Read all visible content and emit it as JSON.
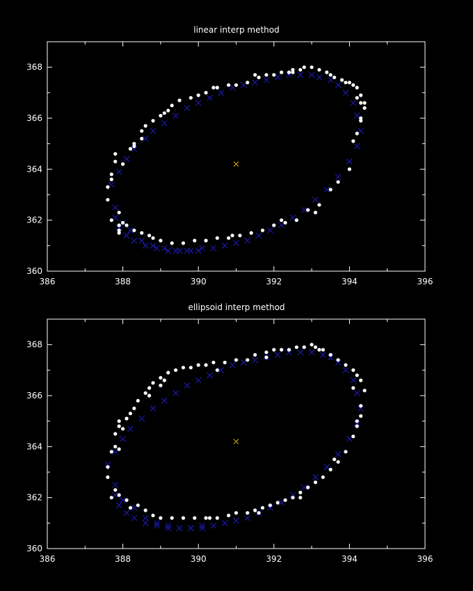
{
  "chart_data": [
    {
      "type": "scatter",
      "title": "linear interp method",
      "xlabel": "",
      "ylabel": "",
      "xlim": [
        386,
        396
      ],
      "ylim": [
        360,
        369
      ],
      "xticks": [
        386,
        388,
        390,
        392,
        394,
        396
      ],
      "yticks": [
        360,
        362,
        364,
        366,
        368
      ],
      "grid": false,
      "colors": {
        "background": "#000000",
        "axes": "#ffffff",
        "dots": "#ffffff",
        "crosses": "#1a1aa8",
        "center": "#d8b000"
      },
      "center": {
        "x": 391.0,
        "y": 364.2
      },
      "dots_x": [
        387.6,
        387.6,
        387.7,
        387.7,
        387.8,
        387.8,
        387.9,
        387.9,
        388.0,
        388.2,
        388.3,
        388.3,
        388.5,
        388.5,
        388.6,
        388.8,
        389.0,
        389.2,
        389.5,
        389.8,
        390.0,
        390.2,
        390.5,
        390.8,
        391.0,
        391.3,
        391.5,
        391.8,
        392.0,
        392.2,
        392.4,
        392.5,
        392.7,
        392.8,
        393.0,
        393.2,
        393.4,
        393.5,
        393.8,
        393.9,
        394.0,
        394.1,
        394.2,
        394.2,
        394.3,
        394.3,
        394.4,
        394.4,
        394.3,
        394.2,
        394.0,
        393.7,
        393.5,
        393.2,
        392.9,
        392.6,
        392.3,
        392.0,
        391.7,
        391.4,
        391.1,
        390.8,
        390.5,
        390.2,
        389.9,
        389.6,
        389.3,
        389.0,
        388.8,
        388.7,
        388.5,
        388.3,
        388.1,
        387.9,
        387.7,
        389.1,
        389.3,
        390.4,
        391.6,
        392.5,
        393.6,
        387.9,
        388.0,
        394.3,
        392.2,
        390.9,
        393.1,
        394.1
      ],
      "dots_y": [
        362.8,
        363.3,
        363.6,
        363.8,
        364.3,
        364.6,
        361.8,
        361.6,
        364.2,
        364.8,
        364.9,
        365.0,
        365.2,
        365.5,
        365.7,
        365.9,
        366.1,
        366.3,
        366.7,
        366.8,
        366.9,
        367.0,
        367.2,
        367.3,
        367.3,
        367.4,
        367.7,
        367.7,
        367.7,
        367.8,
        367.8,
        367.9,
        367.9,
        368.0,
        368.0,
        367.9,
        367.8,
        367.7,
        367.5,
        367.4,
        367.4,
        367.3,
        367.2,
        366.8,
        366.6,
        366.9,
        366.6,
        366.4,
        366.0,
        365.4,
        364.0,
        363.5,
        363.2,
        362.6,
        362.4,
        362.0,
        361.9,
        361.8,
        361.6,
        361.5,
        361.4,
        361.3,
        361.3,
        361.2,
        361.2,
        361.1,
        361.1,
        361.2,
        361.3,
        361.4,
        361.5,
        361.6,
        361.8,
        361.5,
        362.0,
        366.2,
        366.5,
        367.2,
        367.6,
        367.8,
        367.6,
        362.3,
        361.9,
        365.9,
        362.0,
        361.4,
        362.3,
        365.1
      ],
      "crosses_x": [
        387.7,
        387.9,
        388.1,
        388.3,
        388.6,
        388.8,
        389.1,
        389.4,
        389.7,
        390.0,
        390.3,
        390.6,
        390.9,
        391.2,
        391.5,
        391.8,
        392.1,
        392.4,
        392.7,
        393.0,
        393.2,
        393.5,
        393.7,
        393.9,
        394.1,
        394.2,
        394.3,
        394.2,
        394.0,
        393.7,
        393.4,
        393.1,
        392.8,
        392.5,
        392.2,
        391.9,
        391.6,
        391.3,
        391.0,
        390.7,
        390.4,
        390.1,
        389.8,
        389.5,
        389.2,
        388.9,
        388.6,
        388.3,
        388.1,
        387.9,
        387.8,
        387.8,
        388.0,
        388.2,
        388.5,
        388.8,
        389.1,
        389.4,
        389.7,
        390.0
      ],
      "crosses_y": [
        363.4,
        363.9,
        364.4,
        364.8,
        365.2,
        365.5,
        365.8,
        366.1,
        366.4,
        366.6,
        366.8,
        367.0,
        367.2,
        367.3,
        367.4,
        367.5,
        367.6,
        367.7,
        367.7,
        367.7,
        367.6,
        367.5,
        367.3,
        367.0,
        366.6,
        366.1,
        365.5,
        364.9,
        364.3,
        363.7,
        363.2,
        362.8,
        362.4,
        362.1,
        361.8,
        361.6,
        361.4,
        361.2,
        361.1,
        361.0,
        360.9,
        360.9,
        360.8,
        360.8,
        360.8,
        360.9,
        361.0,
        361.2,
        361.4,
        361.7,
        362.1,
        362.5,
        361.9,
        361.6,
        361.2,
        361.0,
        360.9,
        360.8,
        360.8,
        360.8
      ]
    },
    {
      "type": "scatter",
      "title": "ellipsoid interp method",
      "xlabel": "",
      "ylabel": "",
      "xlim": [
        386,
        396
      ],
      "ylim": [
        360,
        369
      ],
      "xticks": [
        386,
        388,
        390,
        392,
        394,
        396
      ],
      "yticks": [
        360,
        362,
        364,
        366,
        368
      ],
      "grid": false,
      "colors": {
        "background": "#000000",
        "axes": "#ffffff",
        "dots": "#ffffff",
        "crosses": "#1a1aa8",
        "center": "#d8b000"
      },
      "center": {
        "x": 391.0,
        "y": 364.2
      },
      "dots_x": [
        387.6,
        387.6,
        387.7,
        387.8,
        387.8,
        387.9,
        387.9,
        388.0,
        388.1,
        388.2,
        388.3,
        388.4,
        388.6,
        388.7,
        388.8,
        389.0,
        389.2,
        389.4,
        389.6,
        389.8,
        390.0,
        390.2,
        390.4,
        390.7,
        391.0,
        391.3,
        391.5,
        391.8,
        392.0,
        392.2,
        392.4,
        392.6,
        392.8,
        393.0,
        393.1,
        393.3,
        393.5,
        393.7,
        393.9,
        394.1,
        394.2,
        394.3,
        394.4,
        394.3,
        394.2,
        394.1,
        393.9,
        393.7,
        393.5,
        393.3,
        393.1,
        392.9,
        392.7,
        392.5,
        392.3,
        392.1,
        391.9,
        391.7,
        391.5,
        391.3,
        391.0,
        390.8,
        390.5,
        390.2,
        389.9,
        389.6,
        389.3,
        389.0,
        388.8,
        388.6,
        388.4,
        388.1,
        387.9,
        387.8,
        387.7,
        388.7,
        389.0,
        389.1,
        390.5,
        391.8,
        393.2,
        394.1,
        394.3,
        387.9,
        388.2,
        390.3,
        391.6,
        392.7,
        393.6,
        394.2
      ],
      "dots_y": [
        363.2,
        362.8,
        363.8,
        364.0,
        364.5,
        364.8,
        365.0,
        364.7,
        365.1,
        365.3,
        365.5,
        365.8,
        366.1,
        366.3,
        366.5,
        366.7,
        366.9,
        367.0,
        367.1,
        367.1,
        367.2,
        367.2,
        367.3,
        367.3,
        367.4,
        367.4,
        367.6,
        367.7,
        367.8,
        367.8,
        367.8,
        367.9,
        367.9,
        368.0,
        367.9,
        367.8,
        367.6,
        367.4,
        367.2,
        367.0,
        366.8,
        366.6,
        366.2,
        365.6,
        365.0,
        364.4,
        363.8,
        363.4,
        363.1,
        362.8,
        362.6,
        362.4,
        362.2,
        362.0,
        361.9,
        361.8,
        361.7,
        361.6,
        361.5,
        361.4,
        361.4,
        361.3,
        361.2,
        361.2,
        361.2,
        361.2,
        361.2,
        361.2,
        361.3,
        361.5,
        361.7,
        361.9,
        362.1,
        362.3,
        362.0,
        366.0,
        366.4,
        366.6,
        367.0,
        367.5,
        367.8,
        366.3,
        365.2,
        363.9,
        361.6,
        361.2,
        361.4,
        362.0,
        363.5,
        364.8
      ],
      "crosses_x": [
        387.6,
        387.8,
        388.0,
        388.2,
        388.5,
        388.8,
        389.1,
        389.4,
        389.7,
        390.0,
        390.3,
        390.6,
        390.9,
        391.2,
        391.5,
        391.8,
        392.1,
        392.4,
        392.7,
        393.0,
        393.3,
        393.5,
        393.7,
        393.9,
        394.1,
        394.2,
        394.3,
        394.2,
        394.0,
        393.7,
        393.4,
        393.1,
        392.8,
        392.5,
        392.2,
        391.9,
        391.6,
        391.3,
        391.0,
        390.7,
        390.4,
        390.1,
        389.8,
        389.5,
        389.2,
        388.9,
        388.6,
        388.3,
        388.1,
        387.9,
        387.8,
        387.8,
        388.0,
        388.3,
        388.6,
        388.9,
        389.2,
        389.5,
        389.8,
        390.1
      ],
      "crosses_y": [
        363.3,
        363.8,
        364.3,
        364.7,
        365.1,
        365.5,
        365.8,
        366.1,
        366.4,
        366.6,
        366.8,
        367.0,
        367.2,
        367.3,
        367.4,
        367.5,
        367.6,
        367.7,
        367.7,
        367.7,
        367.6,
        367.5,
        367.3,
        367.0,
        366.6,
        366.1,
        365.5,
        364.9,
        364.3,
        363.7,
        363.2,
        362.8,
        362.4,
        362.1,
        361.8,
        361.6,
        361.4,
        361.2,
        361.1,
        361.0,
        360.9,
        360.9,
        360.8,
        360.8,
        360.8,
        360.9,
        361.0,
        361.2,
        361.4,
        361.7,
        362.1,
        362.5,
        361.9,
        361.6,
        361.2,
        361.0,
        360.9,
        360.8,
        360.8,
        360.8
      ]
    }
  ]
}
